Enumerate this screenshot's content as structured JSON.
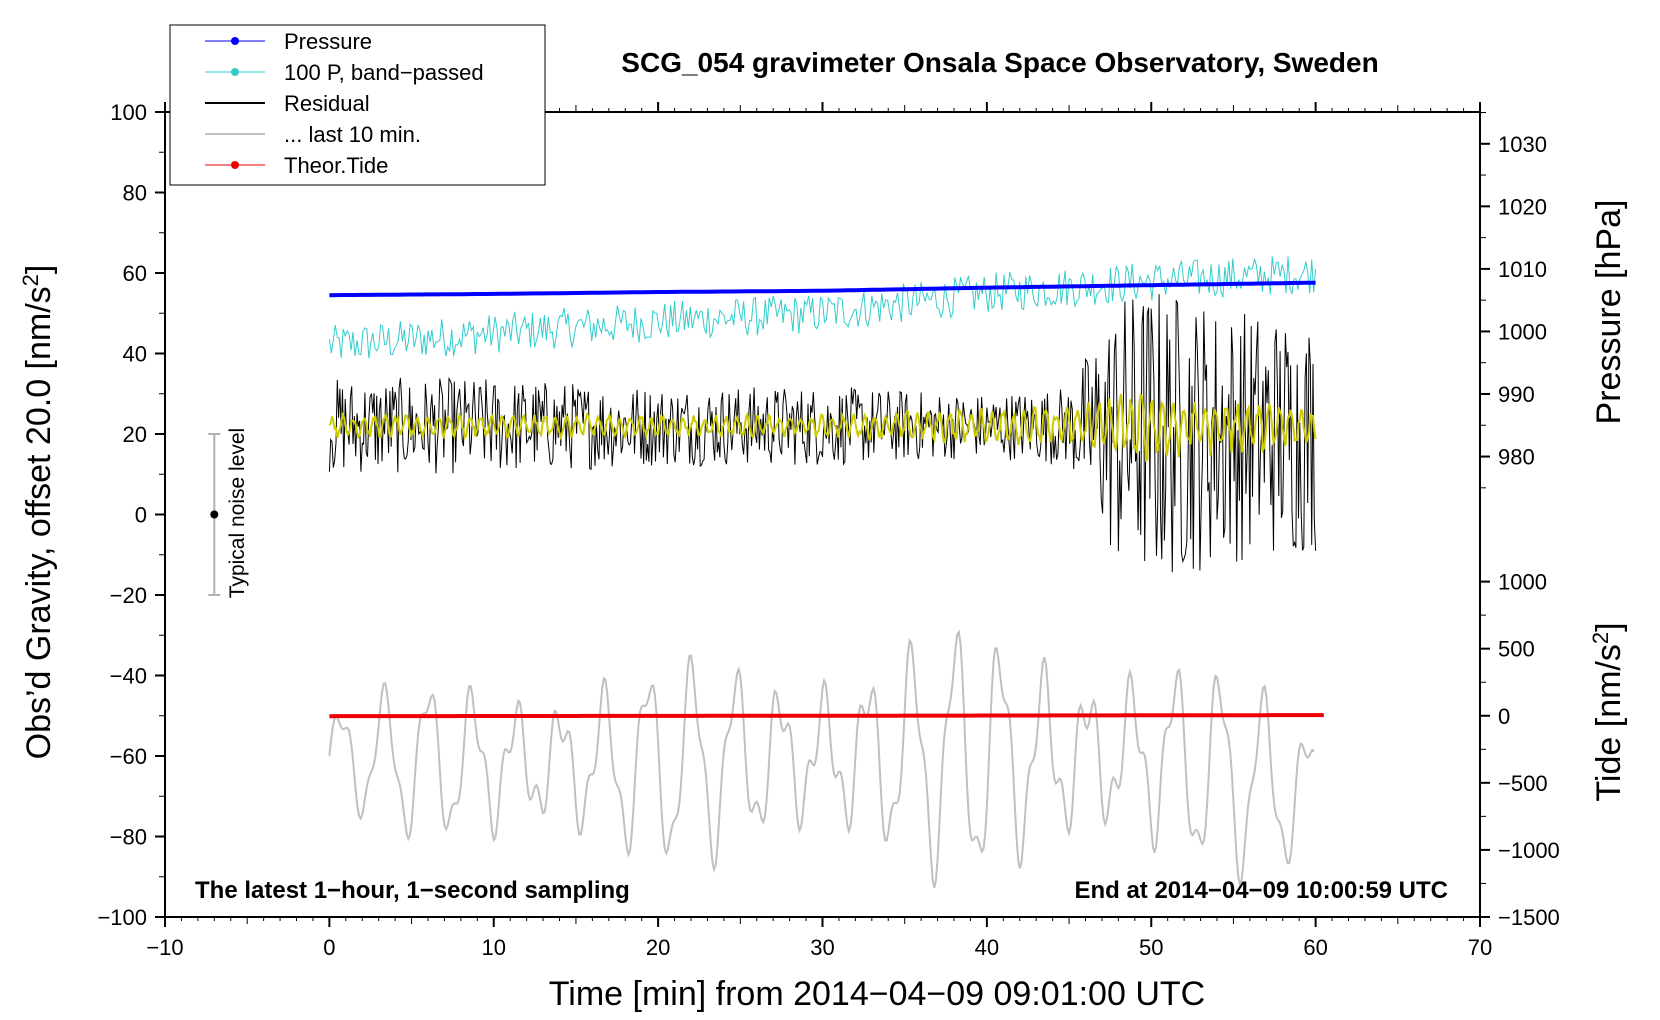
{
  "chart_data": {
    "type": "line",
    "title": "SCG_054 gravimeter Onsala Space Observatory, Sweden",
    "xlabel": "Time [min] from 2014−04−09 09:01:00 UTC",
    "ylabel_left": "Obs’d Gravity, offset 20.0 [nm/s",
    "ylabel_left_sup": "2",
    "ylabel_left_end": "]",
    "ylabel_right_pressure": "Pressure [hPa]",
    "ylabel_right_tide": "Tide [nm/s",
    "ylabel_right_tide_sup": "2",
    "ylabel_right_tide_end": "]",
    "xlim": [
      -10,
      70
    ],
    "ylim_left": [
      -100,
      100
    ],
    "x_ticks": [
      -10,
      0,
      10,
      20,
      30,
      40,
      50,
      60,
      70
    ],
    "x_tick_labels": [
      "−10",
      "0",
      "10",
      "20",
      "30",
      "40",
      "50",
      "60",
      "70"
    ],
    "y_left_ticks": [
      -100,
      -80,
      -60,
      -40,
      -20,
      0,
      20,
      40,
      60,
      80,
      100
    ],
    "y_left_tick_labels": [
      "−100",
      "−80",
      "−60",
      "−40",
      "−20",
      "0",
      "20",
      "40",
      "60",
      "80",
      "100"
    ],
    "pressure_axis": {
      "ticks": [
        980,
        990,
        1000,
        1010,
        1020,
        1030
      ],
      "tick_labels": [
        "980",
        "990",
        "1000",
        "1010",
        "1020",
        "1030"
      ],
      "left_equiv_at_980": 14.4,
      "left_per_hpa": 1.554
    },
    "tide_axis": {
      "ticks": [
        -1500,
        -1000,
        -500,
        0,
        500,
        1000
      ],
      "tick_labels": [
        "−1500",
        "−1000",
        "−500",
        "0",
        "500",
        "1000"
      ],
      "left_equiv_at_0": -50.0,
      "left_per_unit": 0.03333
    },
    "series": [
      {
        "name": "Pressure",
        "color": "#0000ff",
        "x": [
          0,
          10,
          20,
          30,
          40,
          50,
          60
        ],
        "values_hpa": [
          1005.8,
          1006.0,
          1006.3,
          1006.5,
          1007.0,
          1007.4,
          1007.8
        ]
      },
      {
        "name": "100 P, band−passed",
        "color": "#33cccc",
        "x": [
          0,
          10,
          20,
          30,
          40,
          50,
          60
        ],
        "values": [
          42,
          45,
          48,
          50,
          55,
          58,
          60
        ],
        "noise_amplitude": 5
      },
      {
        "name": "Residual",
        "color": "#000000",
        "x": [
          0,
          10,
          20,
          30,
          40,
          45,
          48,
          50,
          55,
          60
        ],
        "values": [
          22,
          22,
          22,
          22,
          22,
          22,
          20,
          20,
          20,
          20
        ],
        "noise_amplitude": [
          12,
          12,
          10,
          10,
          8,
          10,
          35,
          38,
          32,
          30
        ]
      },
      {
        "name": "Residual (filtered)",
        "color": "#cccc00",
        "x": [
          0,
          10,
          20,
          30,
          40,
          45,
          48,
          50,
          55,
          60
        ],
        "values": [
          22,
          22,
          22,
          22,
          22,
          22,
          22,
          22,
          22,
          22
        ],
        "noise_amplitude": [
          3,
          3,
          3,
          3,
          5,
          5,
          10,
          9,
          7,
          5
        ]
      },
      {
        "name": "... last 10 min.",
        "color": "#c0c0c0",
        "x": [
          0,
          10,
          20,
          30,
          40,
          50,
          60
        ],
        "values": [
          -60,
          -62,
          -62,
          -60,
          -60,
          -60,
          -70
        ],
        "swing_amplitude": [
          12,
          22,
          22,
          25,
          28,
          26,
          18
        ]
      },
      {
        "name": "Theor.Tide",
        "color": "#ee0000",
        "x": [
          0,
          30,
          60.5
        ],
        "values_tide": [
          -3,
          0,
          5
        ]
      }
    ],
    "legend": {
      "placement": "top-left",
      "entries": [
        "Pressure",
        "100 P, band−passed",
        "Residual",
        "... last 10 min.",
        "Theor.Tide"
      ]
    },
    "noise_indicator": {
      "label": "Typical noise level",
      "x": -7,
      "center": 0,
      "low": -20,
      "high": 20
    },
    "annotations": {
      "bottom_left": "The latest 1−hour, 1−second sampling",
      "bottom_right": "End at 2014−04−09 10:00:59 UTC"
    },
    "colors": {
      "pressure": "#0000ff",
      "bandpassed": "#33cccc",
      "residual": "#000000",
      "filtered": "#cccc00",
      "last10": "#c0c0c0",
      "tide": "#ee0000"
    }
  }
}
